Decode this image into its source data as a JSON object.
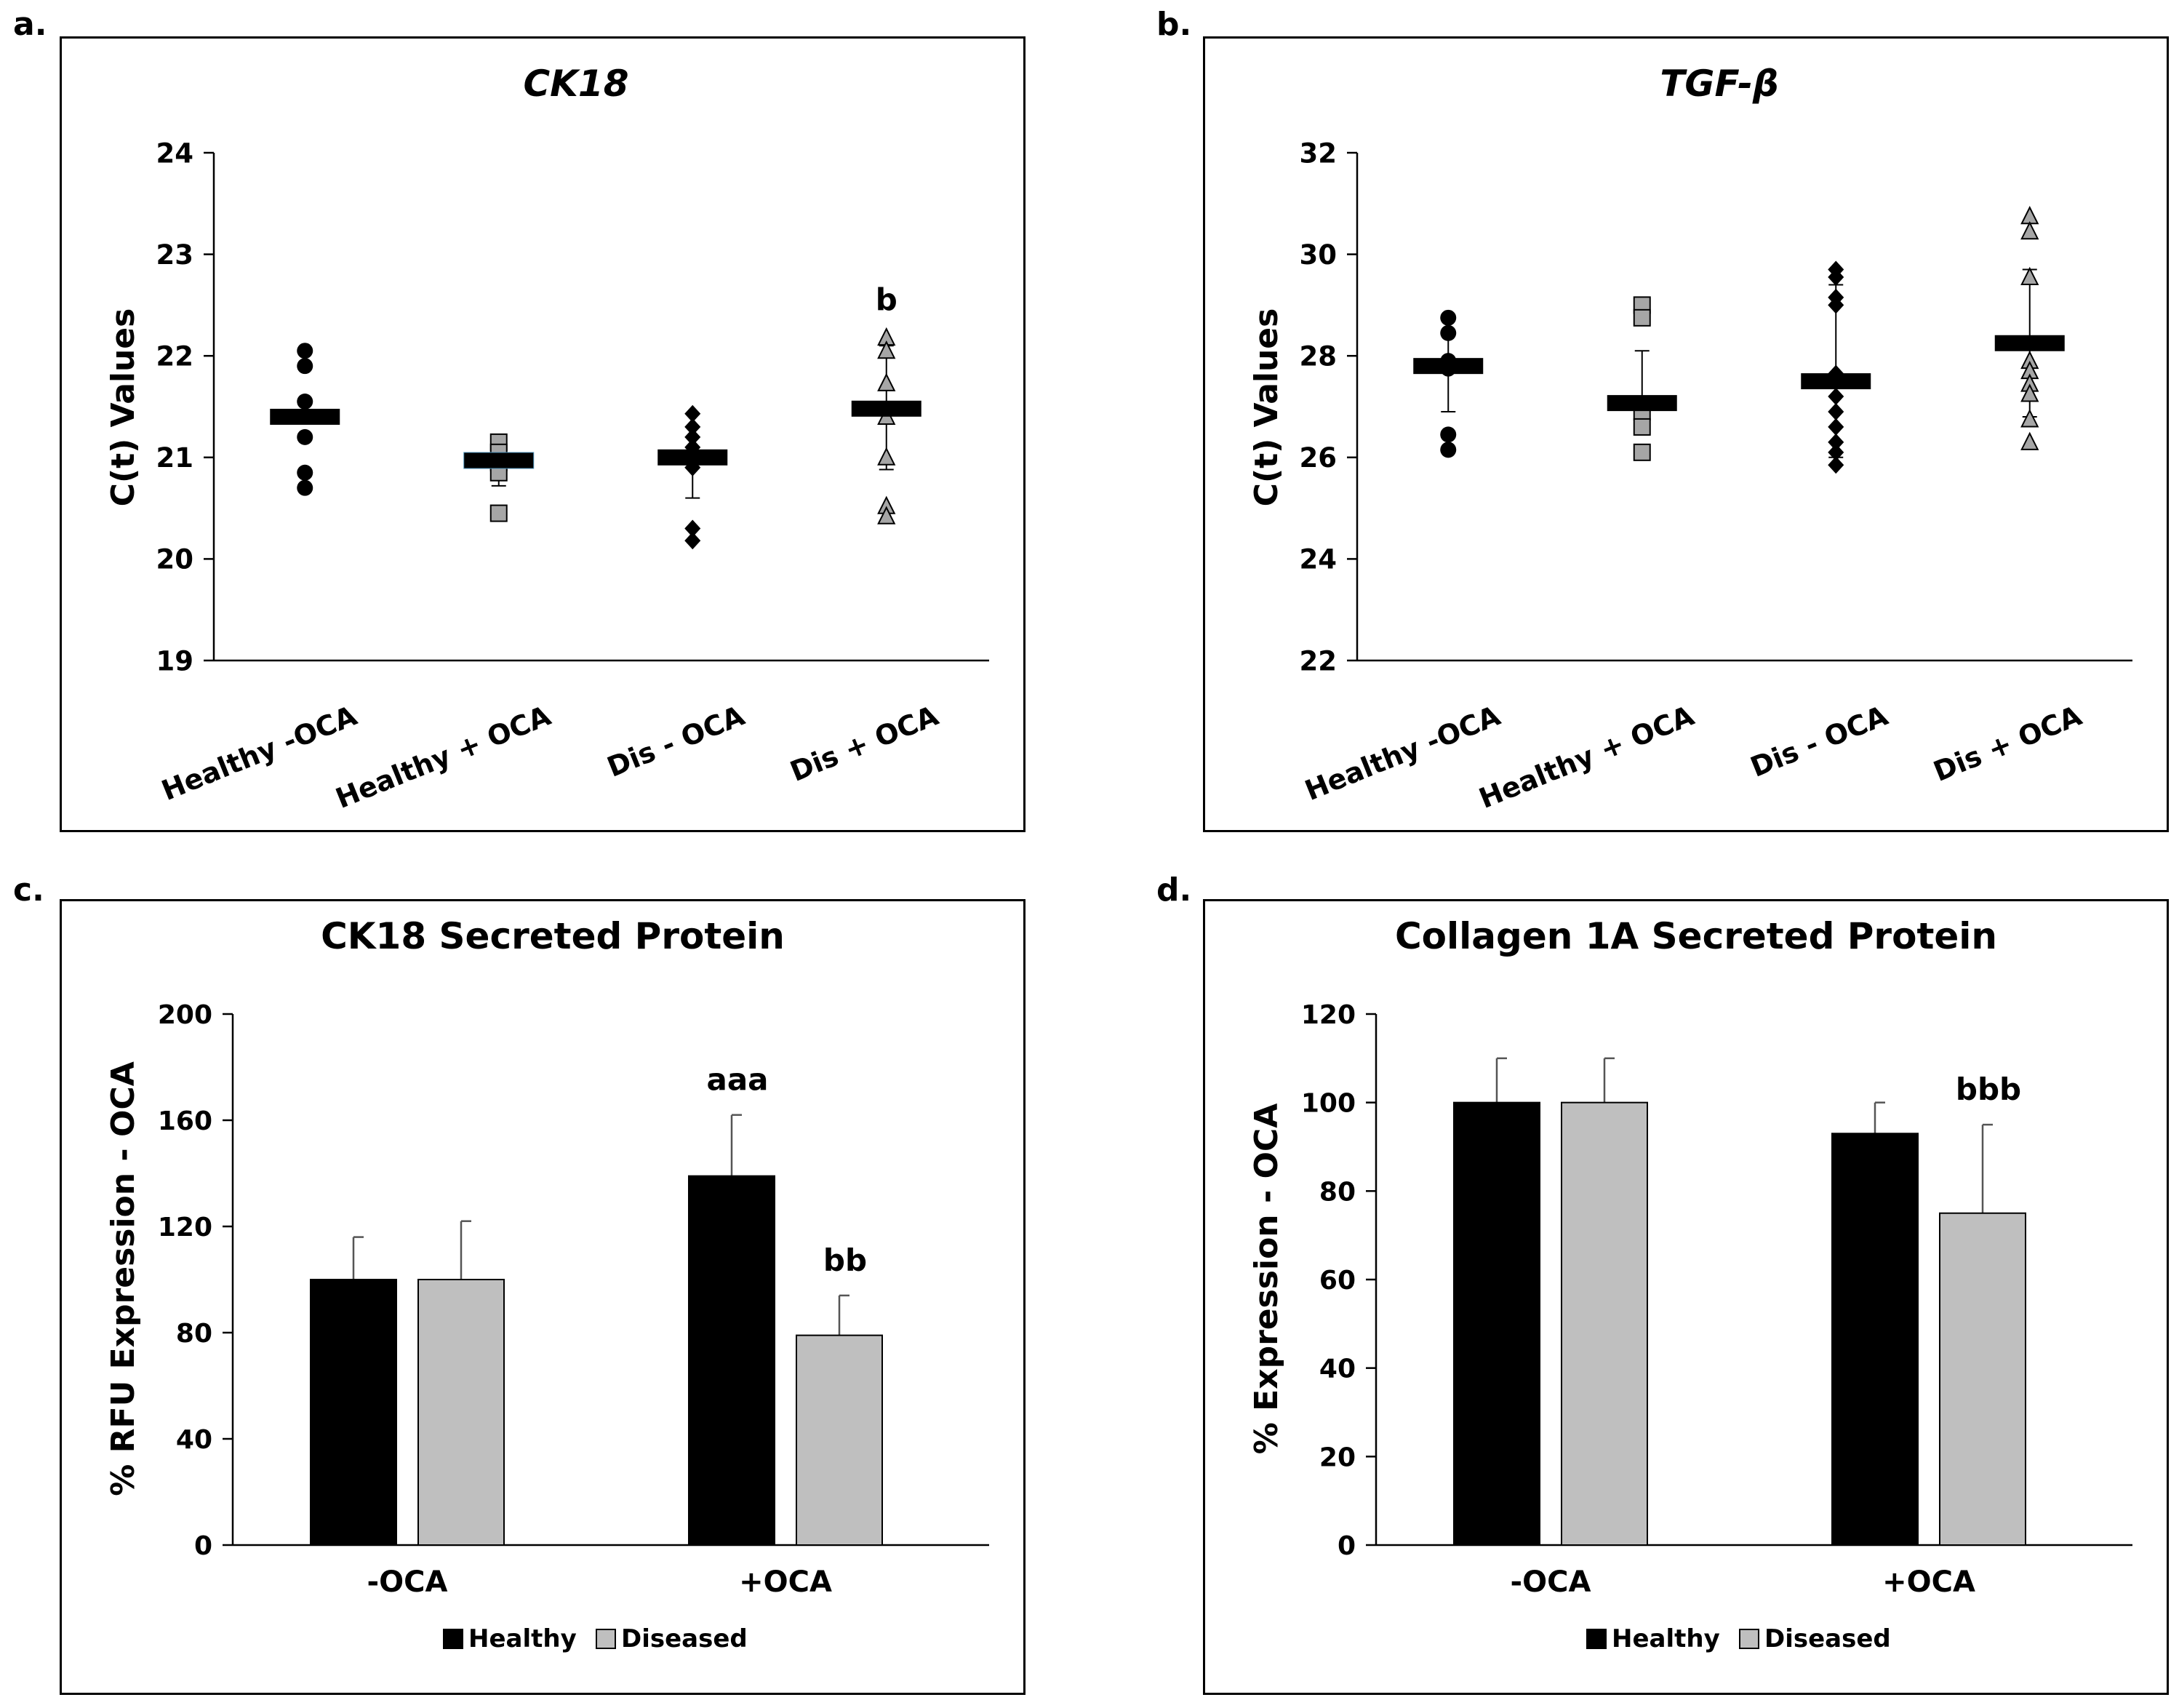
{
  "panel_labels": [
    "a.",
    "b.",
    "c.",
    "d."
  ],
  "colors": {
    "black": "#000000",
    "grey": "#bfbfbf",
    "dark_grey": "#a6a6a6",
    "frame": "#000000"
  },
  "chart_data": [
    {
      "type": "scatter",
      "title": "CK18",
      "ylabel": "C(t) Values",
      "ylim": [
        19,
        24
      ],
      "yticks": [
        "19",
        "20",
        "21",
        "22",
        "23",
        "24"
      ],
      "categories": [
        "Healthy -OCA",
        "Healthy + OCA",
        "Dis - OCA",
        "Dis + OCA"
      ],
      "groups": [
        {
          "name": "Healthy -OCA",
          "marker": "circle",
          "color": "#000000",
          "points": [
            22.05,
            21.9,
            21.55,
            21.2,
            20.85,
            20.7
          ],
          "mean": 21.4,
          "sd_low": 21.4,
          "sd_high": 21.4
        },
        {
          "name": "Healthy + OCA",
          "marker": "square",
          "color": "#a6a6a6",
          "points": [
            21.15,
            21.05,
            20.95,
            20.85,
            20.45
          ],
          "mean": 20.97,
          "sd_low": 20.72,
          "sd_high": 21.1
        },
        {
          "name": "Dis - OCA",
          "marker": "diamond",
          "color": "#000000",
          "points": [
            21.43,
            21.3,
            21.2,
            21.1,
            20.9,
            20.3,
            20.18
          ],
          "mean": 21.0,
          "sd_low": 20.6,
          "sd_high": 21.3
        },
        {
          "name": "Dis + OCA",
          "marker": "triangle",
          "color": "#a6a6a6",
          "points": [
            22.18,
            22.05,
            21.73,
            21.4,
            21.0,
            20.52,
            20.42
          ],
          "mean": 21.48,
          "sd_low": 20.88,
          "sd_high": 22.1
        }
      ],
      "annotations": [
        {
          "category": "Dis + OCA",
          "text": "b",
          "y": 22.55
        }
      ]
    },
    {
      "type": "scatter",
      "title": "TGF-β",
      "ylabel": "C(t) Values",
      "ylim": [
        22,
        32
      ],
      "yticks": [
        "22",
        "24",
        "26",
        "28",
        "30",
        "32"
      ],
      "categories": [
        "Healthy -OCA",
        "Healthy + OCA",
        "Dis - OCA",
        "Dis + OCA"
      ],
      "groups": [
        {
          "name": "Healthy -OCA",
          "marker": "circle",
          "color": "#000000",
          "points": [
            28.75,
            28.45,
            27.9,
            27.75,
            26.45,
            26.15
          ],
          "mean": 27.8,
          "sd_low": 26.9,
          "sd_high": 28.7
        },
        {
          "name": "Healthy + OCA",
          "marker": "square",
          "color": "#a6a6a6",
          "points": [
            29.0,
            28.75,
            26.9,
            26.6,
            26.1
          ],
          "mean": 27.07,
          "sd_low": 26.6,
          "sd_high": 28.1
        },
        {
          "name": "Dis - OCA",
          "marker": "diamond",
          "color": "#000000",
          "points": [
            29.7,
            29.55,
            29.15,
            29.0,
            27.65,
            27.2,
            26.9,
            26.6,
            26.3,
            26.1,
            25.85
          ],
          "mean": 27.5,
          "sd_low": 26.0,
          "sd_high": 29.4
        },
        {
          "name": "Dis + OCA",
          "marker": "triangle",
          "color": "#a6a6a6",
          "points": [
            30.75,
            30.45,
            29.55,
            27.9,
            27.7,
            27.45,
            27.25,
            26.75,
            26.3
          ],
          "mean": 28.25,
          "sd_low": 26.8,
          "sd_high": 29.7
        }
      ],
      "annotations": []
    },
    {
      "type": "bar",
      "title": "CK18 Secreted Protein",
      "ylabel": "% RFU Expression - OCA",
      "ylim": [
        0,
        200
      ],
      "yticks": [
        "0",
        "40",
        "80",
        "120",
        "160",
        "200"
      ],
      "categories": [
        "-OCA",
        "+OCA"
      ],
      "series": [
        {
          "name": "Healthy",
          "color": "#000000",
          "values": [
            100,
            139
          ],
          "errors": [
            16,
            23
          ]
        },
        {
          "name": "Diseased",
          "color": "#bfbfbf",
          "values": [
            100,
            79
          ],
          "errors": [
            22,
            15
          ]
        }
      ],
      "annotations": [
        {
          "category": "+OCA",
          "series": "Healthy",
          "text": "aaa"
        },
        {
          "category": "+OCA",
          "series": "Diseased",
          "text": "bb"
        }
      ]
    },
    {
      "type": "bar",
      "title": "Collagen 1A Secreted Protein",
      "ylabel": "% Expression - OCA",
      "ylim": [
        0,
        120
      ],
      "yticks": [
        "0",
        "20",
        "40",
        "60",
        "80",
        "100",
        "120"
      ],
      "categories": [
        "-OCA",
        "+OCA"
      ],
      "series": [
        {
          "name": "Healthy",
          "color": "#000000",
          "values": [
            100,
            93
          ],
          "errors": [
            10,
            7
          ]
        },
        {
          "name": "Diseased",
          "color": "#bfbfbf",
          "values": [
            100,
            75
          ],
          "errors": [
            10,
            20
          ]
        }
      ],
      "annotations": [
        {
          "category": "+OCA",
          "series": "Diseased",
          "text": "bbb"
        }
      ]
    }
  ]
}
